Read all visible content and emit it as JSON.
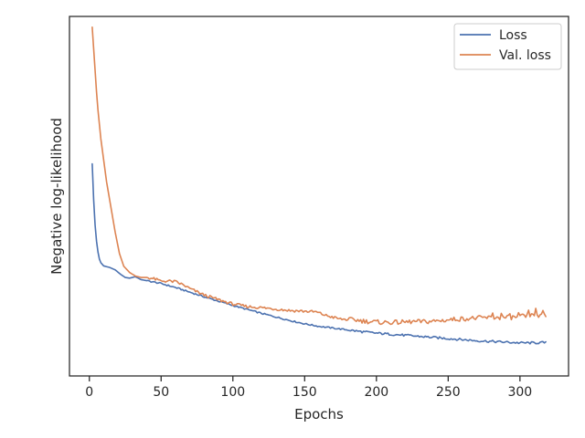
{
  "chart_data": {
    "type": "line",
    "title": "",
    "xlabel": "Epochs",
    "ylabel": "Negative log-likelihood",
    "xlim": [
      -13.85,
      333.85
    ],
    "ylim": [
      0.0,
      1.0
    ],
    "x_ticks": [
      0,
      50,
      100,
      150,
      200,
      250,
      300
    ],
    "y_ticks_visible": false,
    "grid": false,
    "legend_position": "top-right",
    "series": [
      {
        "name": "Loss",
        "color": "#4c72b0",
        "noise": 0.002,
        "points": [
          [
            2,
            0.59
          ],
          [
            3,
            0.49
          ],
          [
            4,
            0.42
          ],
          [
            5,
            0.375
          ],
          [
            6,
            0.345
          ],
          [
            7,
            0.325
          ],
          [
            8,
            0.315
          ],
          [
            10,
            0.306
          ],
          [
            14,
            0.302
          ],
          [
            18,
            0.295
          ],
          [
            22,
            0.282
          ],
          [
            25,
            0.274
          ],
          [
            28,
            0.272
          ],
          [
            32,
            0.276
          ],
          [
            36,
            0.268
          ],
          [
            40,
            0.265
          ],
          [
            50,
            0.257
          ],
          [
            60,
            0.246
          ],
          [
            70,
            0.233
          ],
          [
            80,
            0.22
          ],
          [
            90,
            0.208
          ],
          [
            100,
            0.196
          ],
          [
            110,
            0.185
          ],
          [
            120,
            0.174
          ],
          [
            130,
            0.164
          ],
          [
            140,
            0.154
          ],
          [
            150,
            0.145
          ],
          [
            160,
            0.138
          ],
          [
            170,
            0.133
          ],
          [
            180,
            0.128
          ],
          [
            190,
            0.123
          ],
          [
            200,
            0.119
          ],
          [
            210,
            0.116
          ],
          [
            220,
            0.113
          ],
          [
            230,
            0.11
          ],
          [
            240,
            0.107
          ],
          [
            250,
            0.104
          ],
          [
            260,
            0.101
          ],
          [
            270,
            0.098
          ],
          [
            280,
            0.096
          ],
          [
            290,
            0.094
          ],
          [
            300,
            0.092
          ],
          [
            310,
            0.092
          ],
          [
            318,
            0.093
          ]
        ]
      },
      {
        "name": "Val. loss",
        "color": "#dd8452",
        "noise": 0.004,
        "points": [
          [
            2,
            0.97
          ],
          [
            3,
            0.91
          ],
          [
            4,
            0.85
          ],
          [
            5,
            0.79
          ],
          [
            6,
            0.74
          ],
          [
            7,
            0.7
          ],
          [
            8,
            0.66
          ],
          [
            10,
            0.6
          ],
          [
            12,
            0.54
          ],
          [
            15,
            0.47
          ],
          [
            18,
            0.4
          ],
          [
            21,
            0.34
          ],
          [
            24,
            0.305
          ],
          [
            28,
            0.288
          ],
          [
            32,
            0.278
          ],
          [
            36,
            0.274
          ],
          [
            40,
            0.274
          ],
          [
            45,
            0.27
          ],
          [
            50,
            0.264
          ],
          [
            55,
            0.264
          ],
          [
            60,
            0.262
          ],
          [
            65,
            0.254
          ],
          [
            70,
            0.243
          ],
          [
            80,
            0.225
          ],
          [
            90,
            0.212
          ],
          [
            100,
            0.2
          ],
          [
            110,
            0.193
          ],
          [
            120,
            0.19
          ],
          [
            130,
            0.186
          ],
          [
            140,
            0.182
          ],
          [
            150,
            0.18
          ],
          [
            158,
            0.178
          ],
          [
            165,
            0.168
          ],
          [
            175,
            0.158
          ],
          [
            185,
            0.156
          ],
          [
            195,
            0.151
          ],
          [
            205,
            0.149
          ],
          [
            215,
            0.149
          ],
          [
            225,
            0.151
          ],
          [
            235,
            0.151
          ],
          [
            245,
            0.154
          ],
          [
            255,
            0.158
          ],
          [
            265,
            0.16
          ],
          [
            275,
            0.162
          ],
          [
            285,
            0.162
          ],
          [
            295,
            0.163
          ],
          [
            305,
            0.166
          ],
          [
            312,
            0.168
          ],
          [
            318,
            0.167
          ]
        ]
      }
    ],
    "spikes": [
      [
        281,
        0.175
      ],
      [
        287,
        0.174
      ],
      [
        293,
        0.173
      ],
      [
        299,
        0.176
      ],
      [
        302,
        0.172
      ],
      [
        306,
        0.183
      ],
      [
        309,
        0.172
      ],
      [
        311,
        0.188
      ],
      [
        314,
        0.17
      ],
      [
        316,
        0.182
      ]
    ]
  }
}
